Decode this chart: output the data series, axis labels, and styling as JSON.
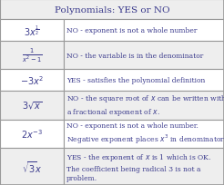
{
  "title": "Polynomials: YES or NO",
  "title_bg": "#eeeeee",
  "border_color": "#999999",
  "text_color": "#3a3a8c",
  "rows": [
    {
      "expr": "$3x^{\\frac{1}{2}}$",
      "explanation": "NO - exponent is not a whole number",
      "bg": "#ffffff",
      "n_lines": 1
    },
    {
      "expr": "$\\frac{1}{x^2 - 1}$",
      "explanation": "NO - the variable is in the denominator",
      "bg": "#eeeeee",
      "n_lines": 1
    },
    {
      "expr": "$-3x^2$",
      "explanation": "YES - satisfies the polynomial definition",
      "bg": "#ffffff",
      "n_lines": 1
    },
    {
      "expr": "$3\\sqrt{x}$",
      "explanation": "NO - the square root of $x$ can be written with\na fractional exponent of $x$.",
      "bg": "#eeeeee",
      "n_lines": 2
    },
    {
      "expr": "$2x^{-3}$",
      "explanation": "NO - exponent is not a whole number.\nNegative exponent places $x^3$ in denominator.",
      "bg": "#ffffff",
      "n_lines": 2
    },
    {
      "expr": "$\\sqrt{3}x$",
      "explanation": "YES - the exponent of $x$ is 1 which is OK.\nThe coefficient being radical 3 is not a\nproblem.",
      "bg": "#eeeeee",
      "n_lines": 3
    }
  ],
  "figsize": [
    2.46,
    2.05
  ],
  "dpi": 100
}
